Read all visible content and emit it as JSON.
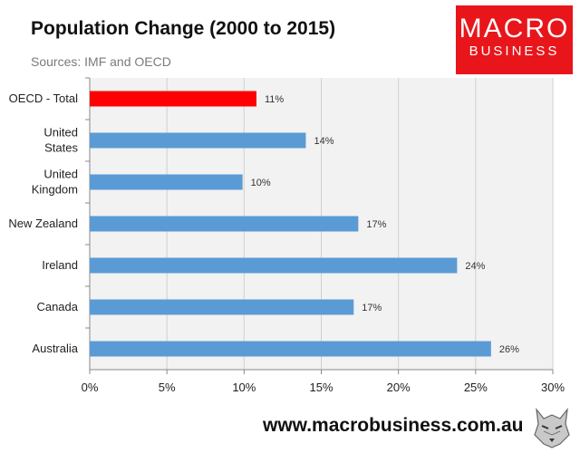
{
  "header": {
    "title": "Population Change (2000 to 2015)",
    "subtitle": "Sources: IMF and OECD"
  },
  "logo": {
    "line1": "MACRO",
    "line2": "BUSINESS"
  },
  "footer": {
    "url": "www.macrobusiness.com.au"
  },
  "colors": {
    "highlight": "#ff0000",
    "bar": "#5b9bd5",
    "plot_bg": "#f2f2f2",
    "logo_bg": "#e8161b"
  },
  "chart_data": {
    "type": "bar",
    "orientation": "horizontal",
    "title": "Population Change (2000 to 2015)",
    "categories": [
      [
        "OECD - Total"
      ],
      [
        "United",
        "States"
      ],
      [
        "United",
        "Kingdom"
      ],
      [
        "New Zealand"
      ],
      [
        "Ireland"
      ],
      [
        "Canada"
      ],
      [
        "Australia"
      ]
    ],
    "values": [
      10.8,
      14.0,
      9.9,
      17.4,
      23.8,
      17.1,
      26.0
    ],
    "value_labels": [
      "11%",
      "14%",
      "10%",
      "17%",
      "24%",
      "17%",
      "26%"
    ],
    "highlight_index": 0,
    "xlim": [
      0,
      30
    ],
    "xticks": [
      0,
      5,
      10,
      15,
      20,
      25,
      30
    ],
    "xtick_labels": [
      "0%",
      "5%",
      "10%",
      "15%",
      "20%",
      "25%",
      "30%"
    ],
    "grid": "vertical"
  }
}
